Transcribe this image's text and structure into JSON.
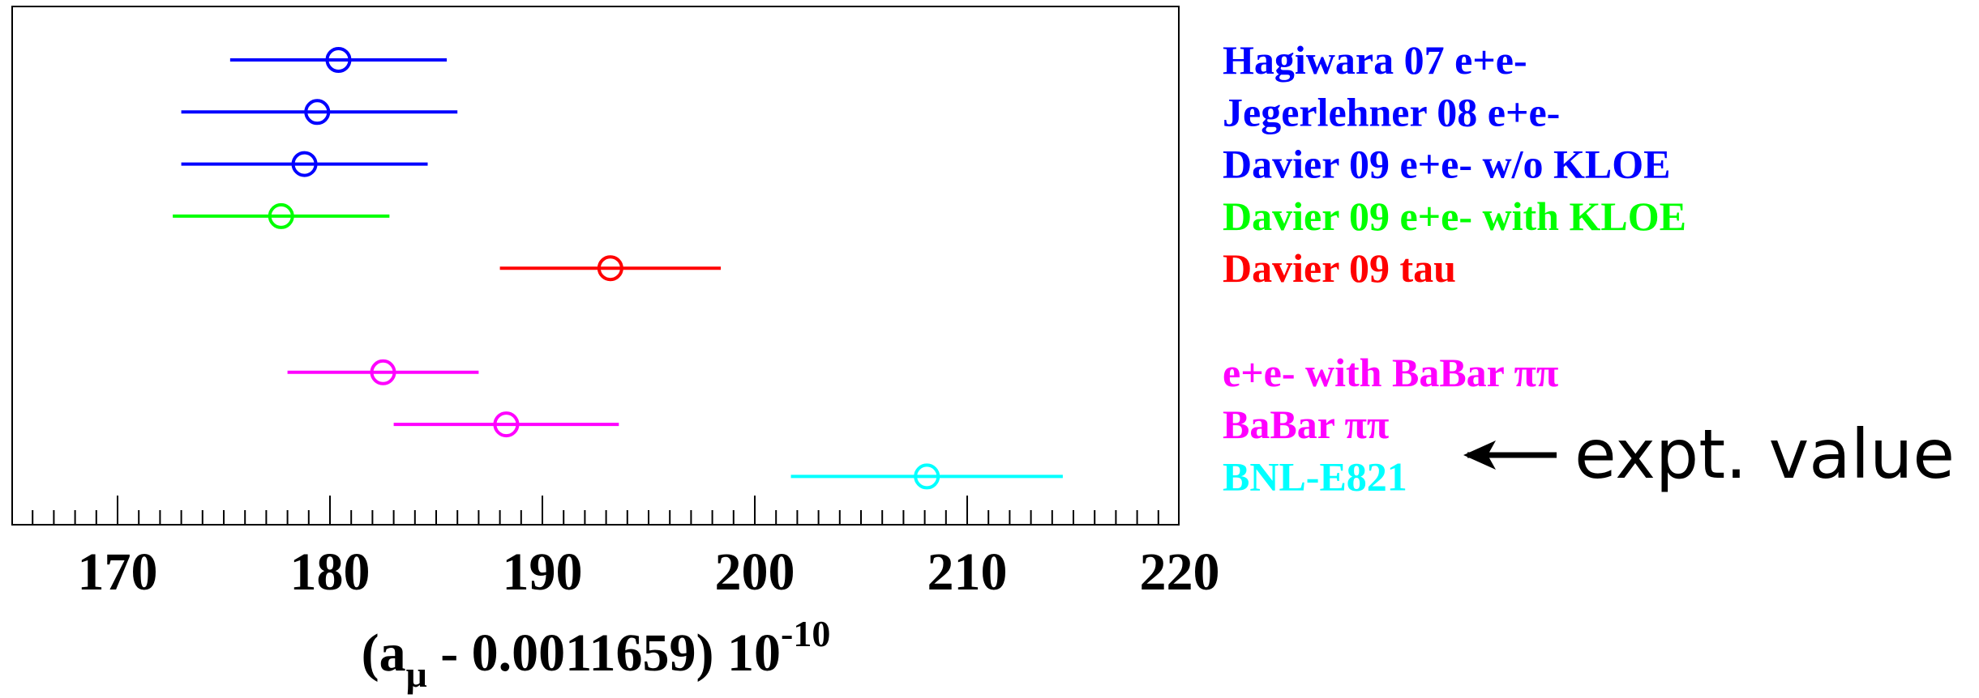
{
  "chart_data": {
    "type": "scatter",
    "xlim": [
      165,
      220
    ],
    "xticks": [
      "170",
      "180",
      "190",
      "200",
      "210",
      "220"
    ],
    "xlabel": {
      "open": "(a",
      "sub": "μ",
      "mid": " - 0.0011659) 10",
      "sup": "-10"
    },
    "grid": false,
    "legend_placement": "right",
    "series": [
      {
        "name": "Hagiwara 07 e+e-",
        "color": "#0000ff",
        "row": 1,
        "value": 180.4,
        "err_low": 175.3,
        "err_high": 185.5
      },
      {
        "name": "Jegerlehner 08 e+e-",
        "color": "#0000ff",
        "row": 2,
        "value": 179.4,
        "err_low": 173.0,
        "err_high": 186.0
      },
      {
        "name": "Davier 09 e+e- w/o KLOE",
        "color": "#0000ff",
        "row": 3,
        "value": 178.8,
        "err_low": 173.0,
        "err_high": 184.6
      },
      {
        "name": "Davier 09 e+e- with KLOE",
        "color": "#00ff00",
        "row": 4,
        "value": 177.7,
        "err_low": 172.6,
        "err_high": 182.8
      },
      {
        "name": "Davier 09 tau",
        "color": "#ff0000",
        "row": 5,
        "value": 193.2,
        "err_low": 188.0,
        "err_high": 198.4
      },
      {
        "name": "e+e- with BaBar ππ",
        "color": "#ff00ff",
        "row": 7,
        "value": 182.5,
        "err_low": 178.0,
        "err_high": 187.0
      },
      {
        "name": "BaBar ππ",
        "color": "#ff00ff",
        "row": 8,
        "value": 188.3,
        "err_low": 183.0,
        "err_high": 193.6
      },
      {
        "name": "BNL-E821",
        "color": "#00ffff",
        "row": 9,
        "value": 208.1,
        "err_low": 201.7,
        "err_high": 214.5
      }
    ],
    "annotation": {
      "text": "expt. value",
      "arrow_icon": "left-arrow-icon",
      "points_to": "BNL-E821"
    }
  }
}
